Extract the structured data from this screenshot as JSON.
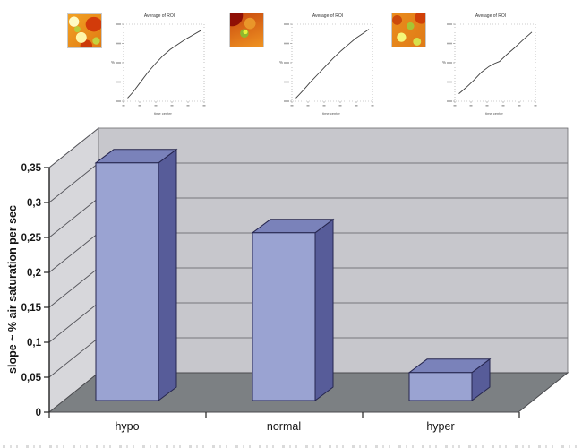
{
  "figure": {
    "description_colors": {
      "bar_front": "#9aa3d2",
      "bar_top": "#7a82ba",
      "bar_side": "#575c99",
      "bar_outline": "#26264f",
      "back_wall": "#c7c7cc",
      "side_wall": "#d7d7db",
      "floor": "#7c8083",
      "gridline": "#6a6a6e",
      "thermal_palette": [
        "#8f1005",
        "#d23b0a",
        "#ef9322",
        "#f5f77a",
        "#8fb82e"
      ]
    }
  },
  "chart_data": [
    {
      "type": "bar",
      "style": "3d-column",
      "title": "",
      "categories": [
        "hypo",
        "normal",
        "hyper"
      ],
      "values": [
        0.34,
        0.24,
        0.04
      ],
      "xlabel": "",
      "ylabel": "slope ~ % air saturation per sec",
      "ylim": [
        0,
        0.35
      ],
      "ytick_values": [
        0,
        0.05,
        0.1,
        0.15,
        0.2,
        0.25,
        0.3,
        0.35
      ],
      "ytick_labels": [
        "0",
        "0,05",
        "0,1",
        "0,15",
        "0,2",
        "0,25",
        "0,3",
        "0,35"
      ],
      "grid": true,
      "legend": false
    },
    {
      "type": "line",
      "title": "Average of ROI",
      "xlabel": "time center",
      "ylabel": "%",
      "panel": "left (above hypo)",
      "points_norm_xy": [
        [
          0.03,
          0.02
        ],
        [
          0.1,
          0.1
        ],
        [
          0.2,
          0.24
        ],
        [
          0.3,
          0.38
        ],
        [
          0.4,
          0.5
        ],
        [
          0.5,
          0.61
        ],
        [
          0.6,
          0.7
        ],
        [
          0.7,
          0.77
        ],
        [
          0.8,
          0.84
        ],
        [
          0.9,
          0.9
        ],
        [
          1.0,
          0.96
        ]
      ]
    },
    {
      "type": "line",
      "title": "Average of ROI",
      "xlabel": "time center",
      "ylabel": "%",
      "panel": "middle (above normal)",
      "points_norm_xy": [
        [
          0.03,
          0.02
        ],
        [
          0.12,
          0.12
        ],
        [
          0.22,
          0.24
        ],
        [
          0.32,
          0.35
        ],
        [
          0.42,
          0.46
        ],
        [
          0.52,
          0.57
        ],
        [
          0.62,
          0.67
        ],
        [
          0.72,
          0.76
        ],
        [
          0.82,
          0.85
        ],
        [
          0.92,
          0.92
        ],
        [
          1.0,
          0.98
        ]
      ]
    },
    {
      "type": "line",
      "title": "Average of ROI",
      "xlabel": "time center",
      "ylabel": "%",
      "panel": "right (above hyper)",
      "points_norm_xy": [
        [
          0.03,
          0.08
        ],
        [
          0.13,
          0.17
        ],
        [
          0.23,
          0.27
        ],
        [
          0.33,
          0.38
        ],
        [
          0.43,
          0.46
        ],
        [
          0.5,
          0.5
        ],
        [
          0.57,
          0.53
        ],
        [
          0.67,
          0.63
        ],
        [
          0.77,
          0.72
        ],
        [
          0.87,
          0.82
        ],
        [
          1.0,
          0.94
        ]
      ]
    }
  ]
}
